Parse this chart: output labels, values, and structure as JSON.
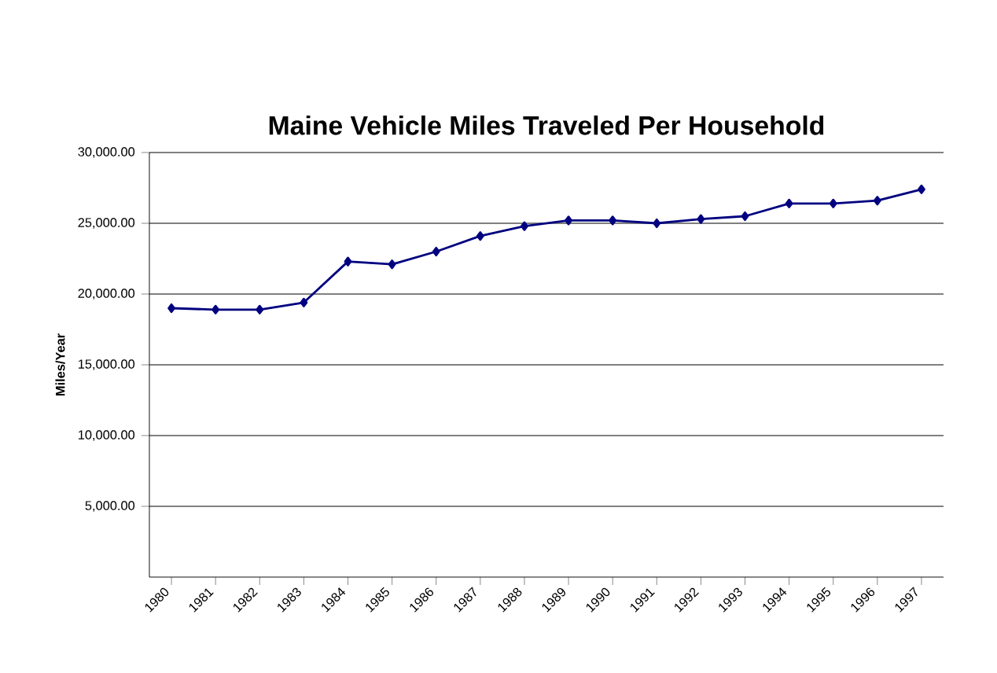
{
  "chart_data": {
    "type": "line",
    "title": "Maine Vehicle Miles Traveled Per Household",
    "ylabel": "Miles/Year",
    "categories": [
      "1980",
      "1981",
      "1982",
      "1983",
      "1984",
      "1985",
      "1986",
      "1987",
      "1988",
      "1989",
      "1990",
      "1991",
      "1992",
      "1993",
      "1994",
      "1995",
      "1996",
      "1997"
    ],
    "series": [
      {
        "color": "#000080",
        "values": [
          19000,
          18900,
          18900,
          19400,
          22300,
          22100,
          23000,
          24100,
          24800,
          25200,
          25200,
          25000,
          25300,
          25500,
          26400,
          26400,
          26600,
          27400
        ]
      }
    ],
    "ylim": [
      0,
      30000
    ],
    "yticks": [
      {
        "value": 5000,
        "label": "5,000.00"
      },
      {
        "value": 10000,
        "label": "10,000.00"
      },
      {
        "value": 15000,
        "label": "15,000.00"
      },
      {
        "value": 20000,
        "label": "20,000.00"
      },
      {
        "value": 25000,
        "label": "25,000.00"
      },
      {
        "value": 30000,
        "label": "30,000.00"
      }
    ],
    "grid": "y",
    "marker": "diamond",
    "line_style": "solid"
  }
}
